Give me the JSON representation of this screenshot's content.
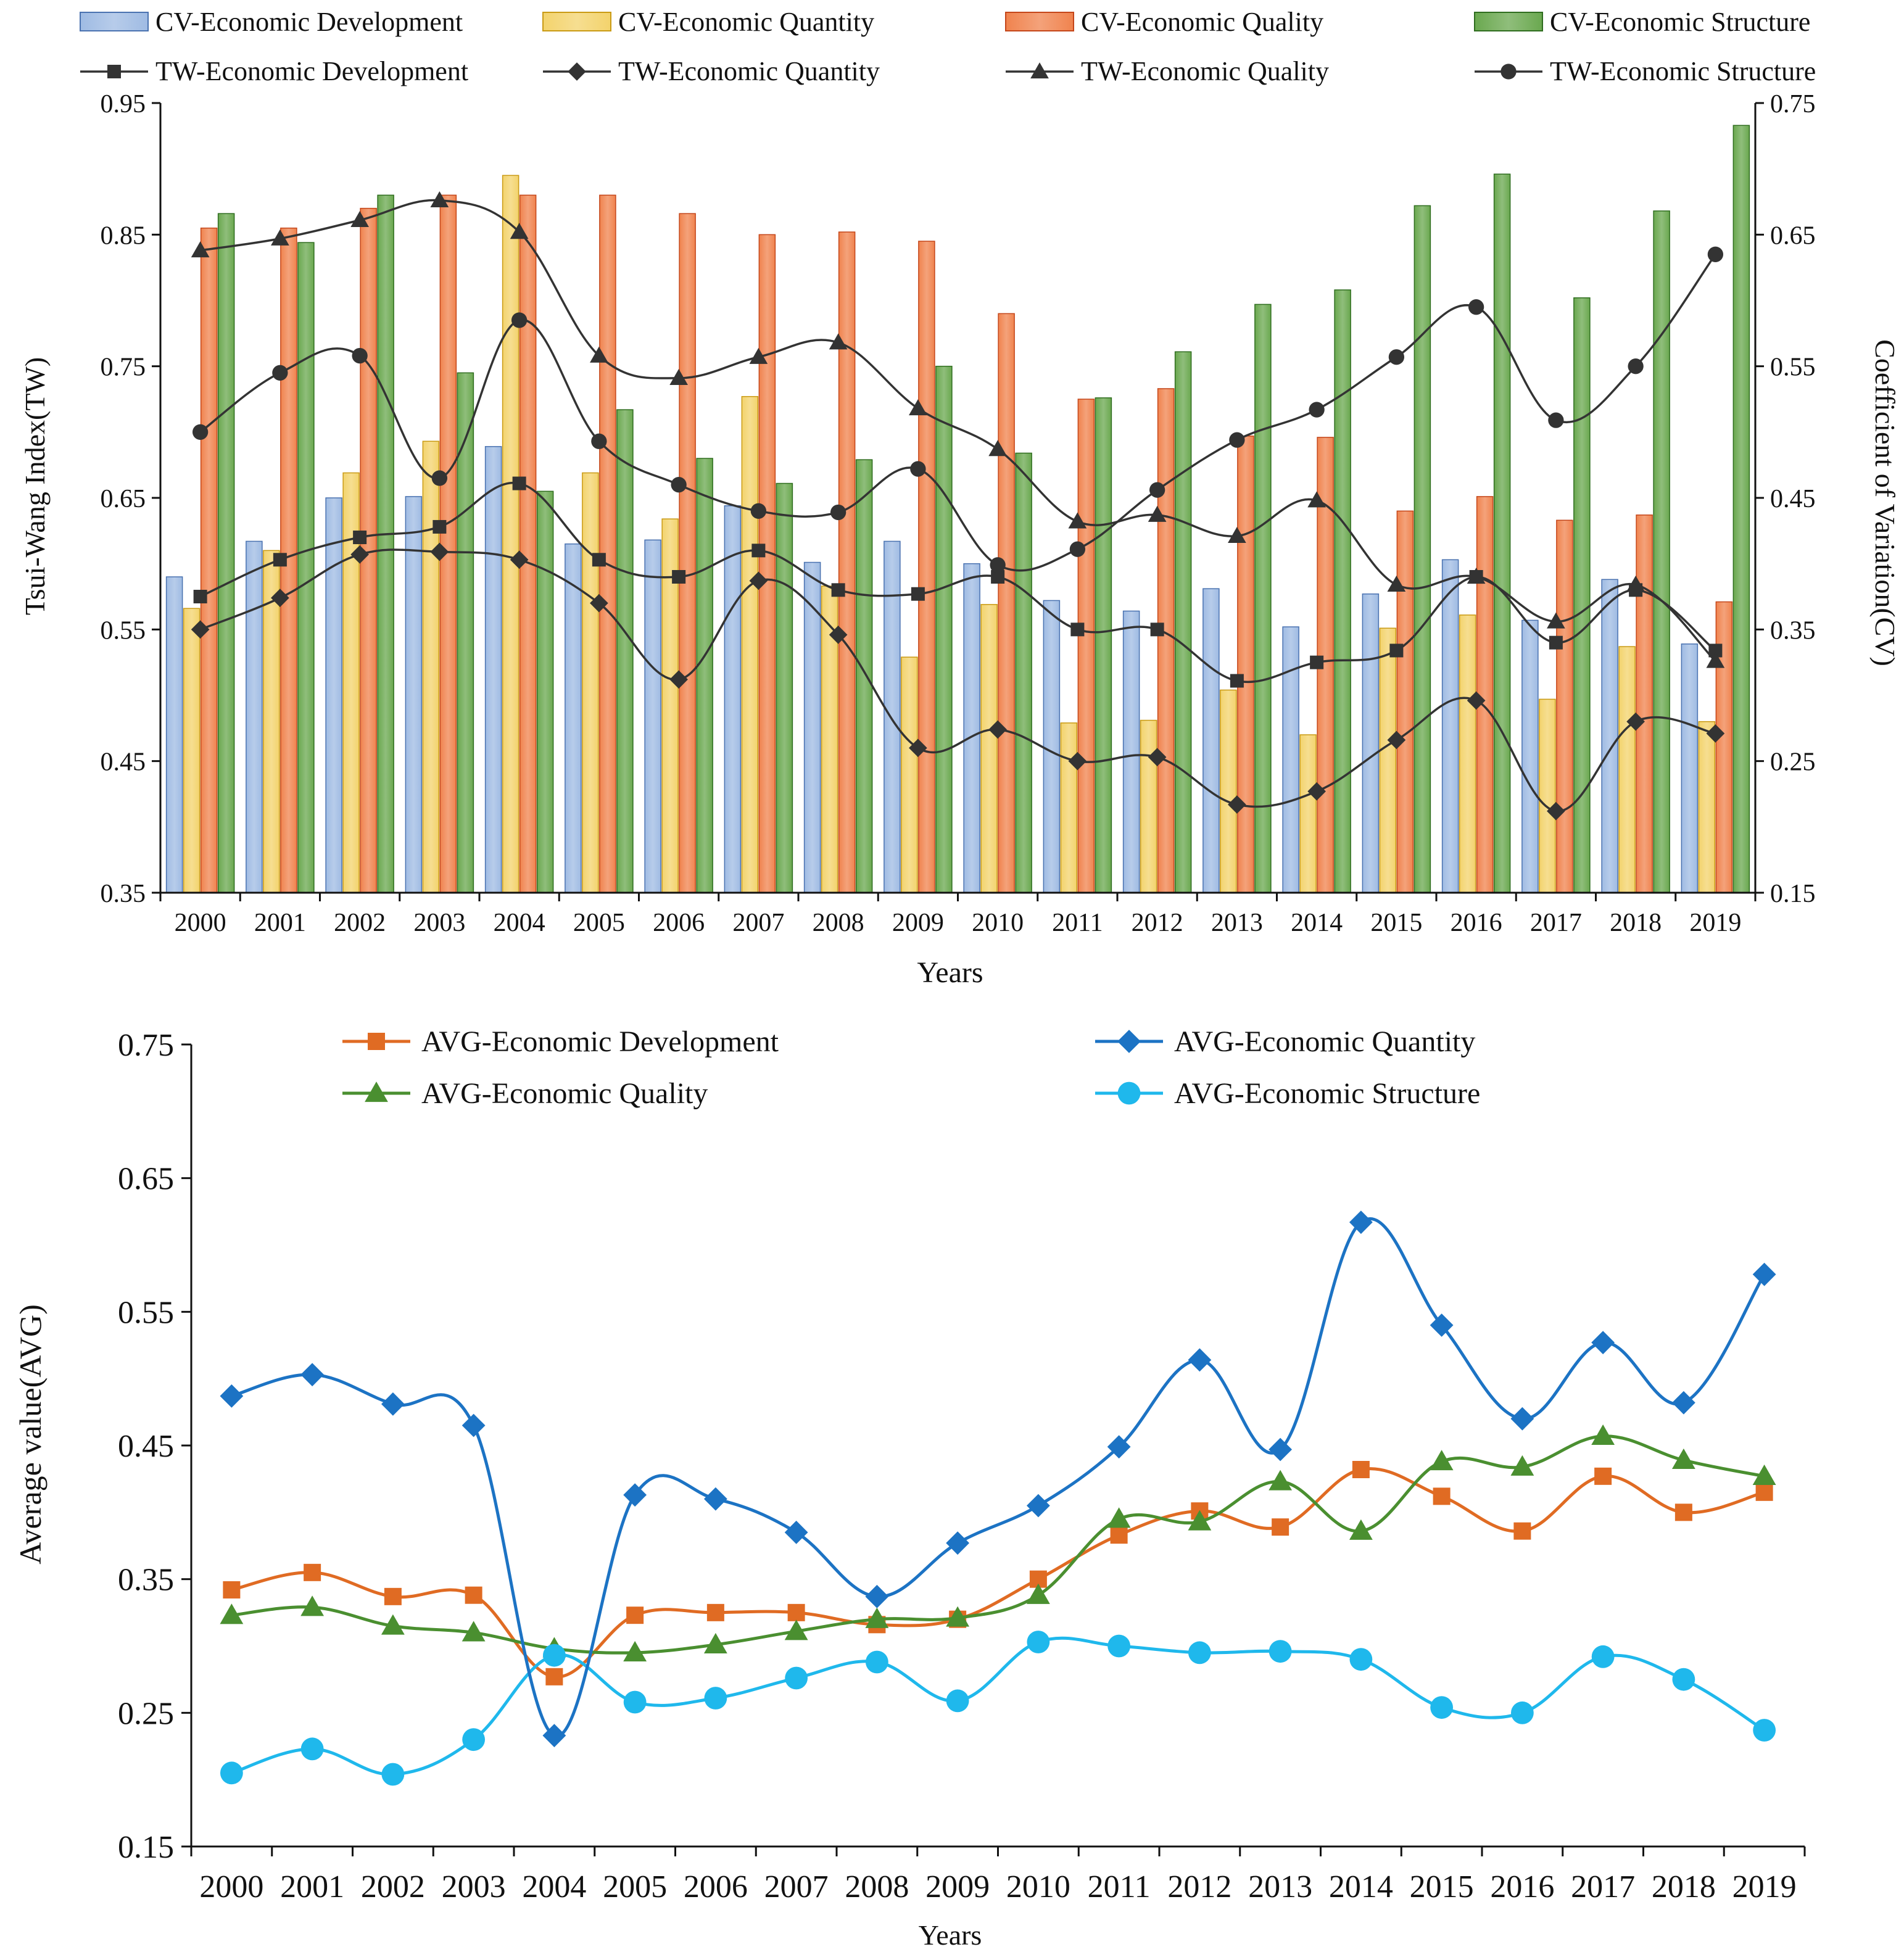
{
  "chart_data": [
    {
      "type": "bar+line",
      "title": "",
      "xlabel": "Years",
      "ylabel_left": "Tsui-Wang Index(TW)",
      "ylabel_right": "Coefficient of Variation(CV)",
      "ylim_left": [
        0.35,
        0.95
      ],
      "ylim_right": [
        0.15,
        0.75
      ],
      "yticks_left": [
        "0.35",
        "0.45",
        "0.55",
        "0.65",
        "0.75",
        "0.85",
        "0.95"
      ],
      "yticks_right": [
        "0.15",
        "0.25",
        "0.35",
        "0.45",
        "0.55",
        "0.65",
        "0.75"
      ],
      "categories": [
        "2000",
        "2001",
        "2002",
        "2003",
        "2004",
        "2005",
        "2006",
        "2007",
        "2008",
        "2009",
        "2010",
        "2011",
        "2012",
        "2013",
        "2014",
        "2015",
        "2016",
        "2017",
        "2018",
        "2019"
      ],
      "bar_series": [
        {
          "name": "CV-Economic Development",
          "color": "#9fbbe3",
          "edge": "#4a72b0",
          "axis": "right",
          "values": [
            0.39,
            0.417,
            0.45,
            0.451,
            0.489,
            0.415,
            0.418,
            0.444,
            0.401,
            0.417,
            0.4,
            0.372,
            0.364,
            0.381,
            0.352,
            0.377,
            0.403,
            0.357,
            0.388,
            0.339
          ]
        },
        {
          "name": "CV-Economic Quantity",
          "color": "#f3d36c",
          "edge": "#c99a14",
          "axis": "right",
          "values": [
            0.366,
            0.41,
            0.469,
            0.493,
            0.695,
            0.469,
            0.434,
            0.527,
            0.383,
            0.329,
            0.369,
            0.279,
            0.281,
            0.304,
            0.27,
            0.351,
            0.361,
            0.297,
            0.337,
            0.28
          ]
        },
        {
          "name": "CV-Economic Quality",
          "color": "#f0834e",
          "edge": "#c4461a",
          "axis": "right",
          "values": [
            0.655,
            0.655,
            0.67,
            0.68,
            0.68,
            0.68,
            0.666,
            0.65,
            0.652,
            0.645,
            0.59,
            0.525,
            0.533,
            0.497,
            0.496,
            0.44,
            0.451,
            0.433,
            0.437,
            0.371
          ]
        },
        {
          "name": "CV-Economic Structure",
          "color": "#6aa84f",
          "edge": "#2f6d1f",
          "axis": "right",
          "values": [
            0.666,
            0.644,
            0.68,
            0.545,
            0.455,
            0.517,
            0.48,
            0.461,
            0.479,
            0.55,
            0.484,
            0.526,
            0.561,
            0.597,
            0.608,
            0.672,
            0.696,
            0.602,
            0.668,
            0.733
          ]
        }
      ],
      "line_series": [
        {
          "name": "TW-Economic Development",
          "marker": "square",
          "axis": "left",
          "values": [
            0.575,
            0.603,
            0.62,
            0.628,
            0.661,
            0.603,
            0.59,
            0.61,
            0.58,
            0.577,
            0.59,
            0.55,
            0.55,
            0.511,
            0.525,
            0.534,
            0.59,
            0.54,
            0.58,
            0.534
          ]
        },
        {
          "name": "TW-Economic Quantity",
          "marker": "diamond",
          "axis": "left",
          "values": [
            0.55,
            0.574,
            0.607,
            0.609,
            0.603,
            0.57,
            0.512,
            0.587,
            0.546,
            0.46,
            0.474,
            0.45,
            0.453,
            0.417,
            0.427,
            0.466,
            0.496,
            0.412,
            0.48,
            0.471
          ]
        },
        {
          "name": "TW-Economic Quality",
          "marker": "triangle",
          "axis": "left",
          "values": [
            0.838,
            0.847,
            0.861,
            0.876,
            0.852,
            0.758,
            0.741,
            0.757,
            0.768,
            0.718,
            0.687,
            0.632,
            0.637,
            0.621,
            0.648,
            0.584,
            0.59,
            0.556,
            0.584,
            0.526
          ]
        },
        {
          "name": "TW-Economic Structure",
          "marker": "circle",
          "axis": "left",
          "values": [
            0.7,
            0.745,
            0.758,
            0.665,
            0.785,
            0.693,
            0.66,
            0.64,
            0.639,
            0.672,
            0.599,
            0.611,
            0.656,
            0.694,
            0.717,
            0.757,
            0.795,
            0.709,
            0.75,
            0.835
          ]
        }
      ]
    },
    {
      "type": "line",
      "title": "",
      "xlabel": "Years",
      "ylabel": "Average value(AVG)",
      "ylim": [
        0.15,
        0.75
      ],
      "yticks": [
        "0.15",
        "0.25",
        "0.35",
        "0.45",
        "0.55",
        "0.65",
        "0.75"
      ],
      "categories": [
        "2000",
        "2001",
        "2002",
        "2003",
        "2004",
        "2005",
        "2006",
        "2007",
        "2008",
        "2009",
        "2010",
        "2011",
        "2012",
        "2013",
        "2014",
        "2015",
        "2016",
        "2017",
        "2018",
        "2019"
      ],
      "series": [
        {
          "name": "AVG-Economic Development",
          "color": "#e06b23",
          "marker": "square",
          "values": [
            0.342,
            0.355,
            0.337,
            0.338,
            0.277,
            0.323,
            0.325,
            0.325,
            0.316,
            0.32,
            0.35,
            0.383,
            0.401,
            0.389,
            0.432,
            0.412,
            0.386,
            0.427,
            0.4,
            0.415
          ]
        },
        {
          "name": "AVG-Economic Quantity",
          "color": "#1c73c4",
          "marker": "diamond",
          "values": [
            0.487,
            0.503,
            0.481,
            0.465,
            0.233,
            0.413,
            0.41,
            0.385,
            0.337,
            0.377,
            0.405,
            0.449,
            0.514,
            0.447,
            0.617,
            0.54,
            0.47,
            0.527,
            0.482,
            0.578
          ]
        },
        {
          "name": "AVG-Economic Quality",
          "color": "#4a8f30",
          "marker": "triangle",
          "values": [
            0.323,
            0.329,
            0.315,
            0.31,
            0.298,
            0.295,
            0.301,
            0.311,
            0.32,
            0.321,
            0.338,
            0.395,
            0.393,
            0.423,
            0.386,
            0.438,
            0.434,
            0.457,
            0.439,
            0.427
          ]
        },
        {
          "name": "AVG-Economic Structure",
          "color": "#1fb8ec",
          "marker": "circle",
          "values": [
            0.205,
            0.223,
            0.204,
            0.23,
            0.293,
            0.258,
            0.261,
            0.276,
            0.288,
            0.259,
            0.303,
            0.3,
            0.295,
            0.296,
            0.29,
            0.254,
            0.25,
            0.292,
            0.275,
            0.237
          ]
        }
      ]
    }
  ]
}
